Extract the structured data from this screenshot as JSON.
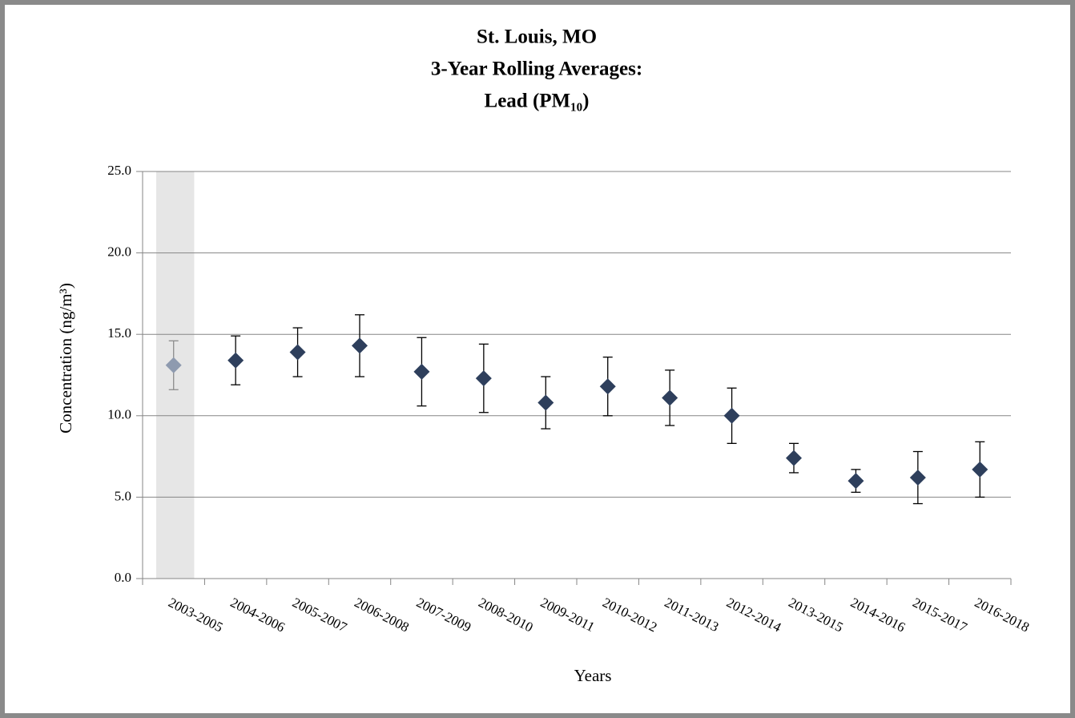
{
  "chart_data": {
    "type": "errorbar",
    "title": [
      "St. Louis, MO",
      "3-Year Rolling Averages:",
      "Lead (PM₁₀)"
    ],
    "xlabel": "Years",
    "ylabel": "Concentration (ng/m³)",
    "categories": [
      "2003-2005",
      "2004-2006",
      "2005-2007",
      "2006-2008",
      "2007-2009",
      "2008-2010",
      "2009-2011",
      "2010-2012",
      "2011-2013",
      "2012-2014",
      "2013-2015",
      "2014-2016",
      "2015-2017",
      "2016-2018"
    ],
    "values": [
      13.1,
      13.4,
      13.9,
      14.3,
      12.7,
      12.3,
      10.8,
      11.8,
      11.1,
      10.0,
      7.4,
      6.0,
      6.2,
      6.7
    ],
    "errors": [
      1.5,
      1.5,
      1.5,
      1.9,
      2.1,
      2.1,
      1.6,
      1.8,
      1.7,
      1.7,
      0.9,
      0.7,
      1.6,
      1.7
    ],
    "point_colors": [
      "#8e9aaf",
      "#2e3f5c",
      "#2e3f5c",
      "#2e3f5c",
      "#2e3f5c",
      "#2e3f5c",
      "#2e3f5c",
      "#2e3f5c",
      "#2e3f5c",
      "#2e3f5c",
      "#2e3f5c",
      "#2e3f5c",
      "#2e3f5c",
      "#2e3f5c"
    ],
    "errorbar_colors": [
      "#8c8c8c",
      "#000000",
      "#000000",
      "#000000",
      "#000000",
      "#000000",
      "#000000",
      "#000000",
      "#000000",
      "#000000",
      "#000000",
      "#000000",
      "#000000",
      "#000000"
    ],
    "shaded": [
      true,
      false,
      false,
      false,
      false,
      false,
      false,
      false,
      false,
      false,
      false,
      false,
      false,
      false
    ],
    "shade_color": "#e6e6e6",
    "ylim": [
      0,
      25
    ],
    "yticks": [
      {
        "value": 0,
        "label": "0.0"
      },
      {
        "value": 5,
        "label": "5.0"
      },
      {
        "value": 10,
        "label": "10.0"
      },
      {
        "value": 15,
        "label": "15.0"
      },
      {
        "value": 20,
        "label": "20.0"
      },
      {
        "value": 25,
        "label": "25.0"
      }
    ],
    "grid": true
  }
}
